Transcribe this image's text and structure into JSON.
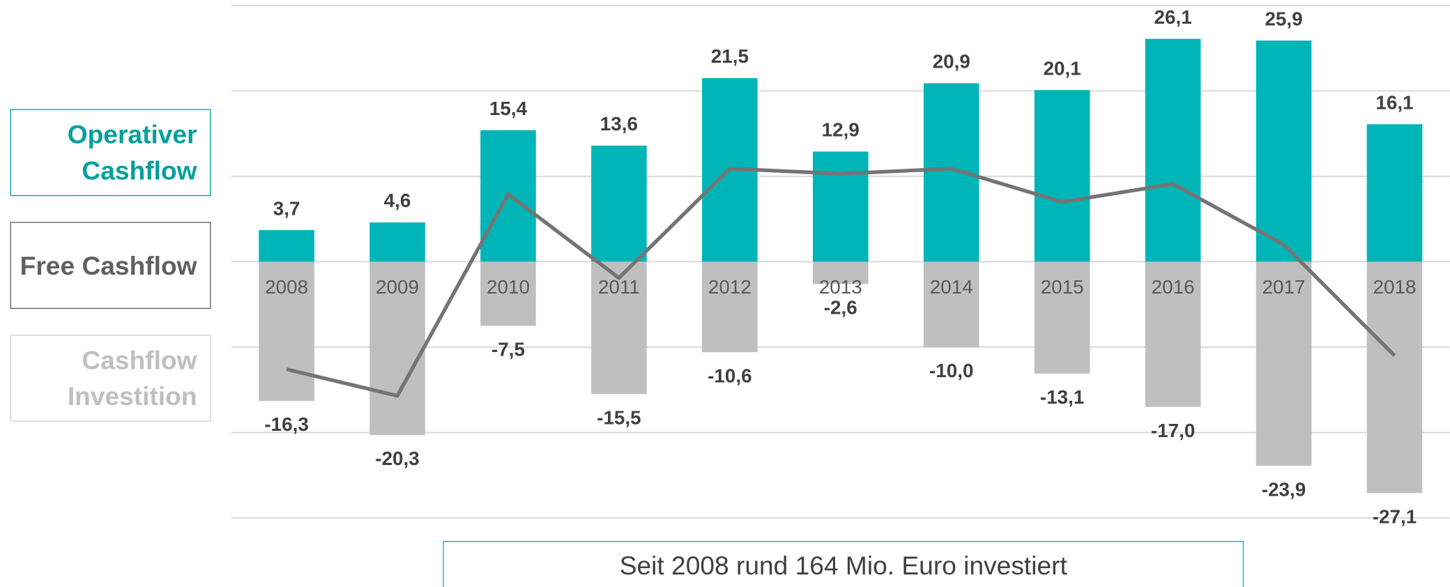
{
  "chart_data": {
    "type": "bar",
    "categories": [
      "2008",
      "2009",
      "2010",
      "2011",
      "2012",
      "2013",
      "2014",
      "2015",
      "2016",
      "2017",
      "2018"
    ],
    "series": [
      {
        "name": "Operativer Cashflow",
        "type": "bar",
        "color": "#00b5b8",
        "text_color": "#00a09c",
        "values": [
          3.7,
          4.6,
          15.4,
          13.6,
          21.5,
          12.9,
          20.9,
          20.1,
          26.1,
          25.9,
          16.1
        ],
        "value_labels": [
          "3,7",
          "4,6",
          "15,4",
          "13,6",
          "21,5",
          "12,9",
          "20,9",
          "20,1",
          "26,1",
          "25,9",
          "16,1"
        ]
      },
      {
        "name": "Free Cashflow",
        "type": "line",
        "color": "#747474",
        "text_color": "#606060",
        "values": [
          -12.6,
          -15.7,
          7.9,
          -1.9,
          10.9,
          10.3,
          10.9,
          7.0,
          9.1,
          2.0,
          -11.0
        ]
      },
      {
        "name": "Cashflow Investition",
        "type": "bar",
        "color": "#bfbfbf",
        "text_color": "#bfbfbf",
        "values": [
          -16.3,
          -20.3,
          -7.5,
          -15.5,
          -10.6,
          -2.6,
          -10.0,
          -13.1,
          -17.0,
          -23.9,
          -27.1
        ],
        "value_labels": [
          "-16,3",
          "-20,3",
          "-7,5",
          "-15,5",
          "-10,6",
          "-2,6",
          "-10,0",
          "-13,1",
          "-17,0",
          "-23,9",
          "-27,1"
        ]
      }
    ],
    "ylim": [
      -30,
      30
    ],
    "yticks": [
      -30,
      -20,
      -10,
      0,
      10,
      20,
      30
    ],
    "grid": true,
    "annotation": "Seit 2008 rund 164 Mio. Euro investiert"
  }
}
